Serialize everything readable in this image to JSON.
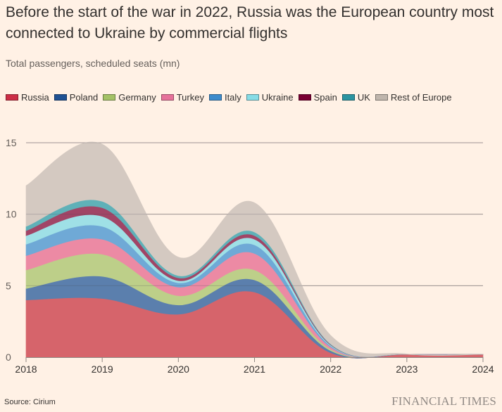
{
  "header": {
    "title": "Before the start of the war in 2022, Russia was the European country most connected to Ukraine by commercial flights",
    "subtitle": "Total passengers, scheduled seats (mn)"
  },
  "footer": {
    "source": "Source: Cirium",
    "brand": "FINANCIAL TIMES"
  },
  "chart_data": {
    "type": "area",
    "stacked": true,
    "title": "Before the start of the war in 2022, Russia was the European country most connected to Ukraine by commercial flights",
    "subtitle": "Total passengers, scheduled seats (mn)",
    "xlabel": "",
    "ylabel": "Total passengers, scheduled seats (mn)",
    "x": [
      2018,
      2019,
      2020,
      2021,
      2022,
      2023,
      2024
    ],
    "xticks": [
      "2018",
      "2019",
      "2020",
      "2021",
      "2022",
      "2023",
      "2024"
    ],
    "yticks": [
      0,
      5,
      10,
      15
    ],
    "ylim": [
      0,
      15
    ],
    "grid": true,
    "legend_position": "top-left",
    "series": [
      {
        "name": "Russia",
        "color": "#d6646b",
        "values": [
          4.0,
          4.1,
          3.0,
          4.55,
          0.3,
          0.2,
          0.2
        ]
      },
      {
        "name": "Poland",
        "color": "#5b7fad",
        "values": [
          0.8,
          1.55,
          0.65,
          0.85,
          0.15,
          0.0,
          0.0
        ]
      },
      {
        "name": "Germany",
        "color": "#bdcf89",
        "values": [
          1.3,
          1.55,
          0.65,
          0.7,
          0.1,
          0.0,
          0.0
        ]
      },
      {
        "name": "Turkey",
        "color": "#ec8aa4",
        "values": [
          1.0,
          1.05,
          0.6,
          1.15,
          0.15,
          0.0,
          0.0
        ]
      },
      {
        "name": "Italy",
        "color": "#6fa9d6",
        "values": [
          0.8,
          0.9,
          0.3,
          0.6,
          0.08,
          0.0,
          0.0
        ]
      },
      {
        "name": "Ukraine",
        "color": "#9fe0e6",
        "values": [
          0.6,
          0.7,
          0.15,
          0.4,
          0.06,
          0.0,
          0.0
        ]
      },
      {
        "name": "Spain",
        "color": "#a14566",
        "values": [
          0.35,
          0.6,
          0.2,
          0.25,
          0.04,
          0.0,
          0.0
        ]
      },
      {
        "name": "UK",
        "color": "#5fb1b8",
        "values": [
          0.3,
          0.45,
          0.15,
          0.25,
          0.04,
          0.0,
          0.0
        ]
      },
      {
        "name": "Rest of Europe",
        "color": "#d4c9c1",
        "values": [
          2.85,
          4.0,
          1.3,
          2.05,
          0.6,
          0.03,
          0.0
        ]
      }
    ],
    "legend_swatch_colors": [
      "#cc2e46",
      "#1f5193",
      "#a4c266",
      "#e6719a",
      "#3d8bcc",
      "#86dce6",
      "#7a0033",
      "#2b94a1",
      "#bfb5ac"
    ]
  }
}
